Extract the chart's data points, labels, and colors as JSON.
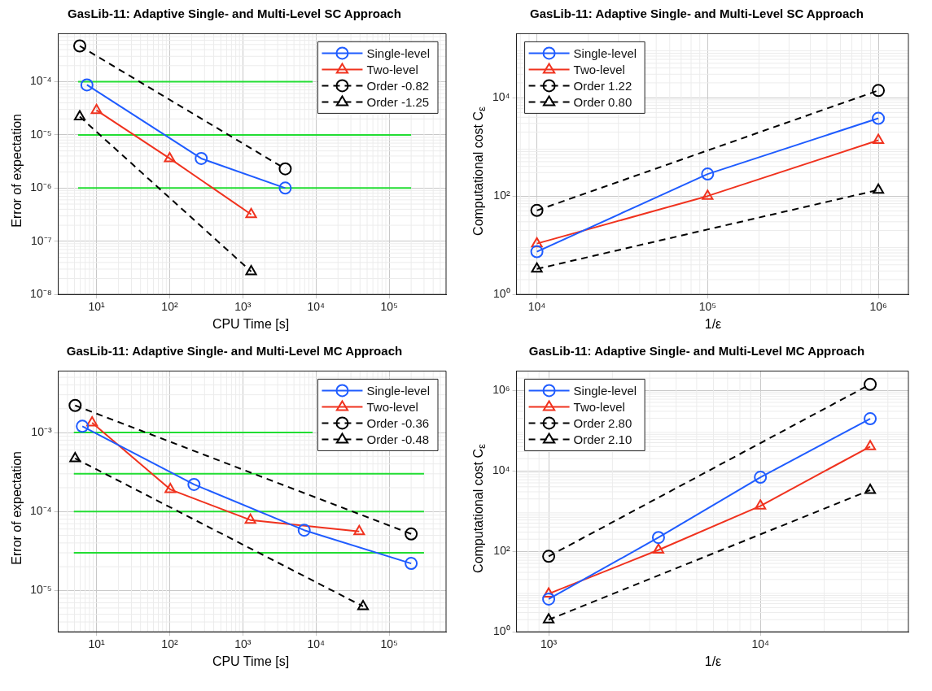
{
  "chart_data": [
    {
      "type": "line",
      "title": "GasLib-11: Adaptive Single- and Multi-Level SC Approach",
      "xlabel": "CPU Time [s]",
      "ylabel": "Error of expectation",
      "log": "xy",
      "grid": true,
      "legend": "top right",
      "xlim": [
        3,
        600000
      ],
      "ylim": [
        1e-08,
        0.0008
      ],
      "xticks": [
        {
          "value": 10,
          "label": "10¹"
        },
        {
          "value": 100,
          "label": "10²"
        },
        {
          "value": 1000,
          "label": "10³"
        },
        {
          "value": 10000,
          "label": "10⁴"
        },
        {
          "value": 100000,
          "label": "10⁵"
        }
      ],
      "yticks": [
        {
          "value": 1e-08,
          "label": "10⁻⁸"
        },
        {
          "value": 1e-07,
          "label": "10⁻⁷"
        },
        {
          "value": 1e-06,
          "label": "10⁻⁶"
        },
        {
          "value": 1e-05,
          "label": "10⁻⁵"
        },
        {
          "value": 0.0001,
          "label": "10⁻⁴"
        }
      ],
      "series": [
        {
          "name": "Single-level",
          "color": "#1f5cff",
          "marker": "circle",
          "line_style": "solid",
          "x": [
            7.4,
            270,
            3800
          ],
          "values": [
            8.7e-05,
            3.6e-06,
            1e-06
          ]
        },
        {
          "name": "Two-level",
          "color": "#f0321e",
          "marker": "triangle",
          "line_style": "solid",
          "x": [
            10,
            100,
            1300
          ],
          "values": [
            2.9e-05,
            3.6e-06,
            3.2e-07
          ]
        },
        {
          "name": "Order -0.82",
          "color": "#000000",
          "marker": "circle",
          "line_style": "dashed",
          "x": [
            5.9,
            3800
          ],
          "values": [
            0.00047,
            2.3e-06
          ]
        },
        {
          "name": "Order -1.25",
          "color": "#000000",
          "marker": "triangle",
          "line_style": "dashed",
          "x": [
            5.9,
            1300
          ],
          "values": [
            2.2e-05,
            2.7e-08
          ]
        },
        {
          "color": "#22dd33",
          "marker": "none",
          "line_style": "solid",
          "x": [
            5.6,
            9000
          ],
          "values": [
            0.0001,
            0.0001
          ]
        },
        {
          "color": "#22dd33",
          "marker": "none",
          "line_style": "solid",
          "x": [
            5.6,
            200000
          ],
          "values": [
            1e-05,
            1e-05
          ]
        },
        {
          "color": "#22dd33",
          "marker": "none",
          "line_style": "solid",
          "x": [
            5.6,
            200000
          ],
          "values": [
            1e-06,
            1e-06
          ]
        }
      ]
    },
    {
      "type": "line",
      "title": "GasLib-11: Adaptive Single- and Multi-Level SC Approach",
      "xlabel": "1/ε",
      "ylabel": "Computational cost C$_{ε}$",
      "log": "xy",
      "grid": true,
      "legend": "top left",
      "xlim": [
        7600,
        1500000
      ],
      "ylim": [
        1,
        200000
      ],
      "xticks": [
        {
          "value": 10000,
          "label": "10⁴"
        },
        {
          "value": 100000,
          "label": "10⁵"
        },
        {
          "value": 1000000,
          "label": "10⁶"
        }
      ],
      "yticks": [
        {
          "value": 1,
          "label": "10⁰"
        },
        {
          "value": 100,
          "label": "10²"
        },
        {
          "value": 10000,
          "label": "10⁴"
        }
      ],
      "series": [
        {
          "name": "Single-level",
          "color": "#1f5cff",
          "marker": "circle",
          "line_style": "solid",
          "x": [
            10000,
            100000,
            1000000
          ],
          "values": [
            7.4,
            280,
            3800
          ]
        },
        {
          "name": "Two-level",
          "color": "#f0321e",
          "marker": "triangle",
          "line_style": "solid",
          "x": [
            10000,
            100000,
            1000000
          ],
          "values": [
            10.8,
            100,
            1360
          ]
        },
        {
          "name": "Order 1.22",
          "color": "#000000",
          "marker": "circle",
          "line_style": "dashed",
          "x": [
            10000,
            1000000
          ],
          "values": [
            51,
            14000
          ]
        },
        {
          "name": "Order 0.80",
          "color": "#000000",
          "marker": "triangle",
          "line_style": "dashed",
          "x": [
            10000,
            1000000
          ],
          "values": [
            3.3,
            133
          ]
        }
      ]
    },
    {
      "type": "line",
      "title": "GasLib-11: Adaptive Single- and Multi-Level MC Approach",
      "xlabel": "CPU Time [s]",
      "ylabel": "Error of expectation",
      "log": "xy",
      "grid": true,
      "legend": "top right",
      "xlim": [
        3,
        600000
      ],
      "ylim": [
        3e-06,
        0.006
      ],
      "xticks": [
        {
          "value": 10,
          "label": "10¹"
        },
        {
          "value": 100,
          "label": "10²"
        },
        {
          "value": 1000,
          "label": "10³"
        },
        {
          "value": 10000,
          "label": "10⁴"
        },
        {
          "value": 100000,
          "label": "10⁵"
        }
      ],
      "yticks": [
        {
          "value": 1e-05,
          "label": "10⁻⁵"
        },
        {
          "value": 0.0001,
          "label": "10⁻⁴"
        },
        {
          "value": 0.001,
          "label": "10⁻³"
        }
      ],
      "series": [
        {
          "name": "Single-level",
          "color": "#1f5cff",
          "marker": "circle",
          "line_style": "solid",
          "x": [
            6.4,
            215,
            6900,
            200000
          ],
          "values": [
            0.0012,
            0.00022,
            5.8e-05,
            2.2e-05
          ]
        },
        {
          "name": "Two-level",
          "color": "#f0321e",
          "marker": "triangle",
          "line_style": "solid",
          "x": [
            8.7,
            102,
            1270,
            39000
          ],
          "values": [
            0.00133,
            0.00019,
            7.8e-05,
            5.6e-05
          ]
        },
        {
          "name": "Order -0.36",
          "color": "#000000",
          "marker": "circle",
          "line_style": "dashed",
          "x": [
            5.1,
            200000
          ],
          "values": [
            0.0022,
            5.2e-05
          ]
        },
        {
          "name": "Order -0.48",
          "color": "#000000",
          "marker": "triangle",
          "line_style": "dashed",
          "x": [
            5.1,
            44000
          ],
          "values": [
            0.00047,
            6.3e-06
          ]
        },
        {
          "color": "#22dd33",
          "marker": "none",
          "line_style": "solid",
          "x": [
            4.9,
            9000
          ],
          "values": [
            0.001,
            0.001
          ]
        },
        {
          "color": "#22dd33",
          "marker": "none",
          "line_style": "solid",
          "x": [
            4.9,
            300000
          ],
          "values": [
            0.0003,
            0.0003
          ]
        },
        {
          "color": "#22dd33",
          "marker": "none",
          "line_style": "solid",
          "x": [
            4.9,
            300000
          ],
          "values": [
            0.0001,
            0.0001
          ]
        },
        {
          "color": "#22dd33",
          "marker": "none",
          "line_style": "solid",
          "x": [
            4.9,
            300000
          ],
          "values": [
            3e-05,
            3e-05
          ]
        }
      ]
    },
    {
      "type": "line",
      "title": "GasLib-11: Adaptive Single- and Multi-Level MC Approach",
      "xlabel": "1/ε",
      "ylabel": "Computational cost C$_{ε}$",
      "log": "xy",
      "grid": true,
      "legend": "top left",
      "xlim": [
        705,
        50000
      ],
      "ylim": [
        1,
        3000000
      ],
      "xticks": [
        {
          "value": 1000,
          "label": "10³"
        },
        {
          "value": 10000,
          "label": "10⁴"
        }
      ],
      "yticks": [
        {
          "value": 1,
          "label": "10⁰"
        },
        {
          "value": 100,
          "label": "10²"
        },
        {
          "value": 10000,
          "label": "10⁴"
        },
        {
          "value": 1000000,
          "label": "10⁶"
        }
      ],
      "series": [
        {
          "name": "Single-level",
          "color": "#1f5cff",
          "marker": "circle",
          "line_style": "solid",
          "x": [
            1000,
            3300,
            10000,
            33000
          ],
          "values": [
            6.5,
            220,
            6900,
            196000
          ]
        },
        {
          "name": "Two-level",
          "color": "#f0321e",
          "marker": "triangle",
          "line_style": "solid",
          "x": [
            1000,
            3300,
            10000,
            33000
          ],
          "values": [
            8.8,
            108,
            1340,
            40000
          ]
        },
        {
          "name": "Order 2.80",
          "color": "#000000",
          "marker": "circle",
          "line_style": "dashed",
          "x": [
            1000,
            33000
          ],
          "values": [
            75,
            1400000
          ]
        },
        {
          "name": "Order 2.10",
          "color": "#000000",
          "marker": "triangle",
          "line_style": "dashed",
          "x": [
            1000,
            33000
          ],
          "values": [
            2,
            3300
          ]
        }
      ]
    }
  ]
}
